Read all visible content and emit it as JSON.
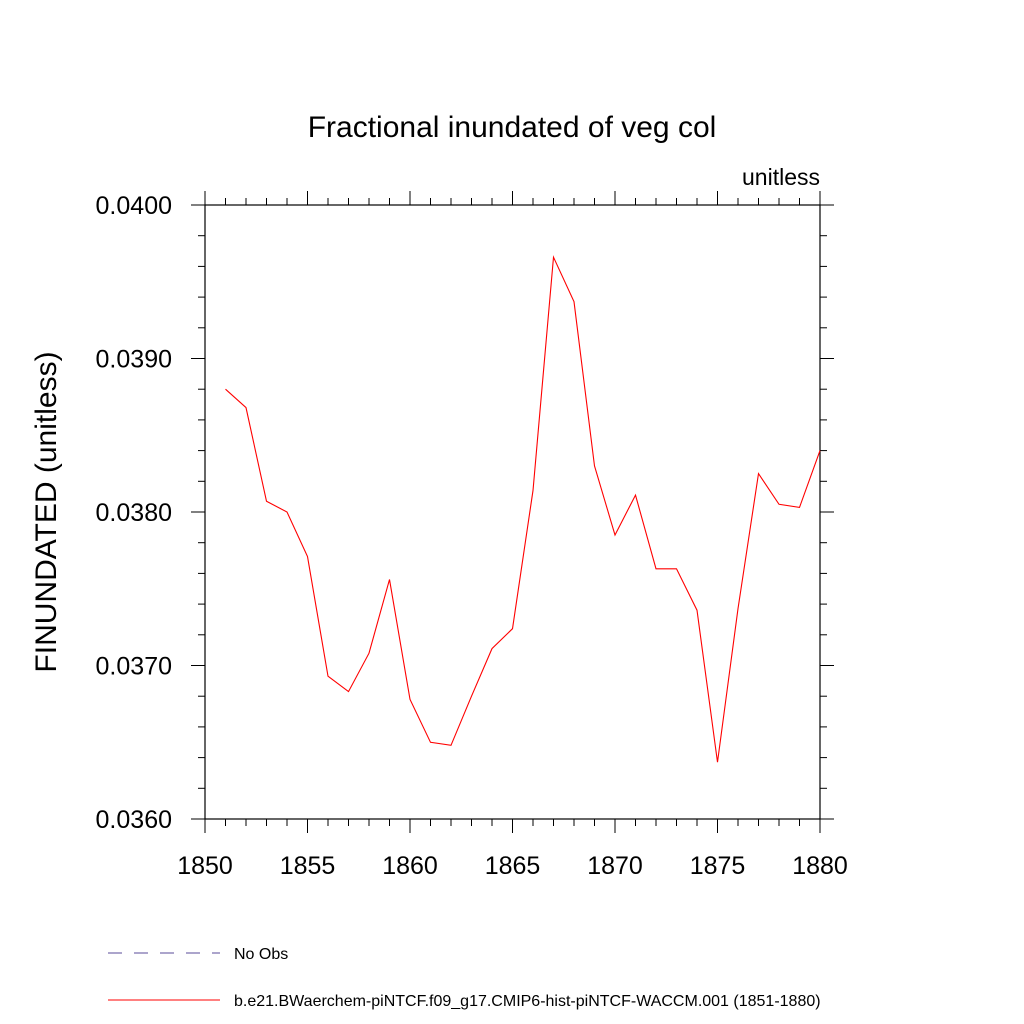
{
  "chart_data": {
    "type": "line",
    "title": "Fractional inundated of veg col",
    "units_label": "unitless",
    "ylabel": "FINUNDATED  (unitless)",
    "xlabel": "",
    "xlim": [
      1850,
      1880
    ],
    "ylim": [
      0.036,
      0.04
    ],
    "x_ticks": [
      1850,
      1855,
      1860,
      1865,
      1870,
      1875,
      1880
    ],
    "x_tick_labels": [
      "1850",
      "1855",
      "1860",
      "1865",
      "1870",
      "1875",
      "1880"
    ],
    "y_ticks": [
      0.036,
      0.037,
      0.038,
      0.039,
      0.04
    ],
    "y_tick_labels": [
      "0.0360",
      "0.0370",
      "0.0380",
      "0.0390",
      "0.0400"
    ],
    "grid": false,
    "legend_position": "bottom",
    "series": [
      {
        "name": "b.e21.BWaerchem-piNTCF.f09_g17.CMIP6-hist-piNTCF-WACCM.001 (1851-1880)",
        "color": "#ff0000",
        "dash": "solid",
        "x": [
          1851,
          1852,
          1853,
          1854,
          1855,
          1856,
          1857,
          1858,
          1859,
          1860,
          1861,
          1862,
          1863,
          1864,
          1865,
          1866,
          1867,
          1868,
          1869,
          1870,
          1871,
          1872,
          1873,
          1874,
          1875,
          1876,
          1877,
          1878,
          1879,
          1880
        ],
        "values": [
          0.0388,
          0.03868,
          0.03807,
          0.038,
          0.03771,
          0.03693,
          0.03683,
          0.03708,
          0.03756,
          0.03678,
          0.0365,
          0.03648,
          0.0368,
          0.03711,
          0.03724,
          0.03814,
          0.03966,
          0.03937,
          0.0383,
          0.03785,
          0.03811,
          0.03763,
          0.03763,
          0.03736,
          0.03637,
          0.03737,
          0.03825,
          0.03805,
          0.03803,
          0.0384
        ]
      }
    ],
    "legend": [
      {
        "label": "No Obs",
        "color": "#5a4b9a",
        "dash": "dashed"
      },
      {
        "label": "b.e21.BWaerchem-piNTCF.f09_g17.CMIP6-hist-piNTCF-WACCM.001 (1851-1880)",
        "color": "#ff0000",
        "dash": "solid"
      }
    ]
  }
}
